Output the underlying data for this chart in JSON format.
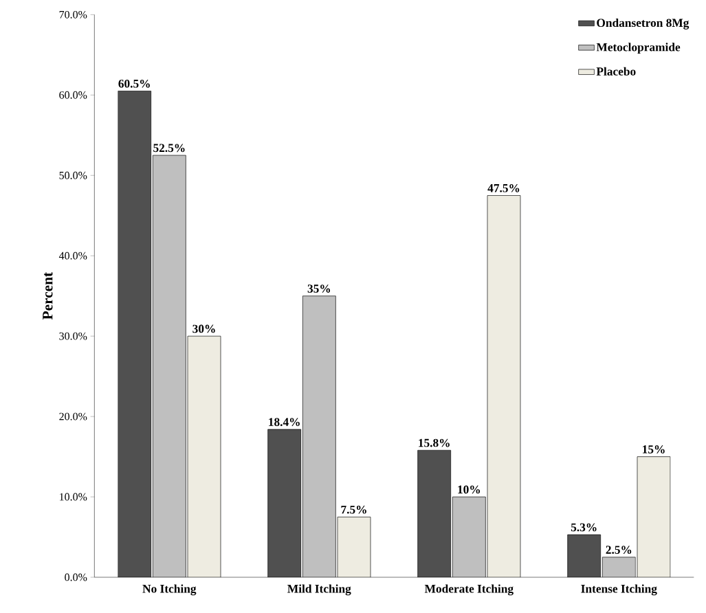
{
  "chart_data": {
    "type": "bar",
    "ylabel": "Percent",
    "categories": [
      "No Itching",
      "Mild Itching",
      "Moderate Itching",
      "Intense Itching"
    ],
    "series": [
      {
        "name": "Ondansetron 8Mg",
        "color": "#505050",
        "values": [
          60.5,
          18.4,
          15.8,
          5.3
        ],
        "value_labels": [
          "60.5%",
          "18.4%",
          "15.8%",
          "5.3%"
        ]
      },
      {
        "name": "Metoclopramide",
        "color": "#bfbfbf",
        "values": [
          52.5,
          35,
          10,
          2.5
        ],
        "value_labels": [
          "52.5%",
          "35%",
          "10%",
          "2.5%"
        ]
      },
      {
        "name": "Placebo",
        "color": "#eeece1",
        "values": [
          30,
          7.5,
          47.5,
          15
        ],
        "value_labels": [
          "30%",
          "7.5%",
          "47.5%",
          "15%"
        ]
      }
    ],
    "ylim": [
      0,
      70
    ],
    "yticks": [
      {
        "value": 0,
        "label": "0.0%"
      },
      {
        "value": 10,
        "label": "10.0%"
      },
      {
        "value": 20,
        "label": "20.0%"
      },
      {
        "value": 30,
        "label": "30.0%"
      },
      {
        "value": 40,
        "label": "40.0%"
      },
      {
        "value": 50,
        "label": "50.0%"
      },
      {
        "value": 60,
        "label": "60.0%"
      },
      {
        "value": 70,
        "label": "70.0%"
      }
    ],
    "grid": false,
    "legend": "top right"
  }
}
